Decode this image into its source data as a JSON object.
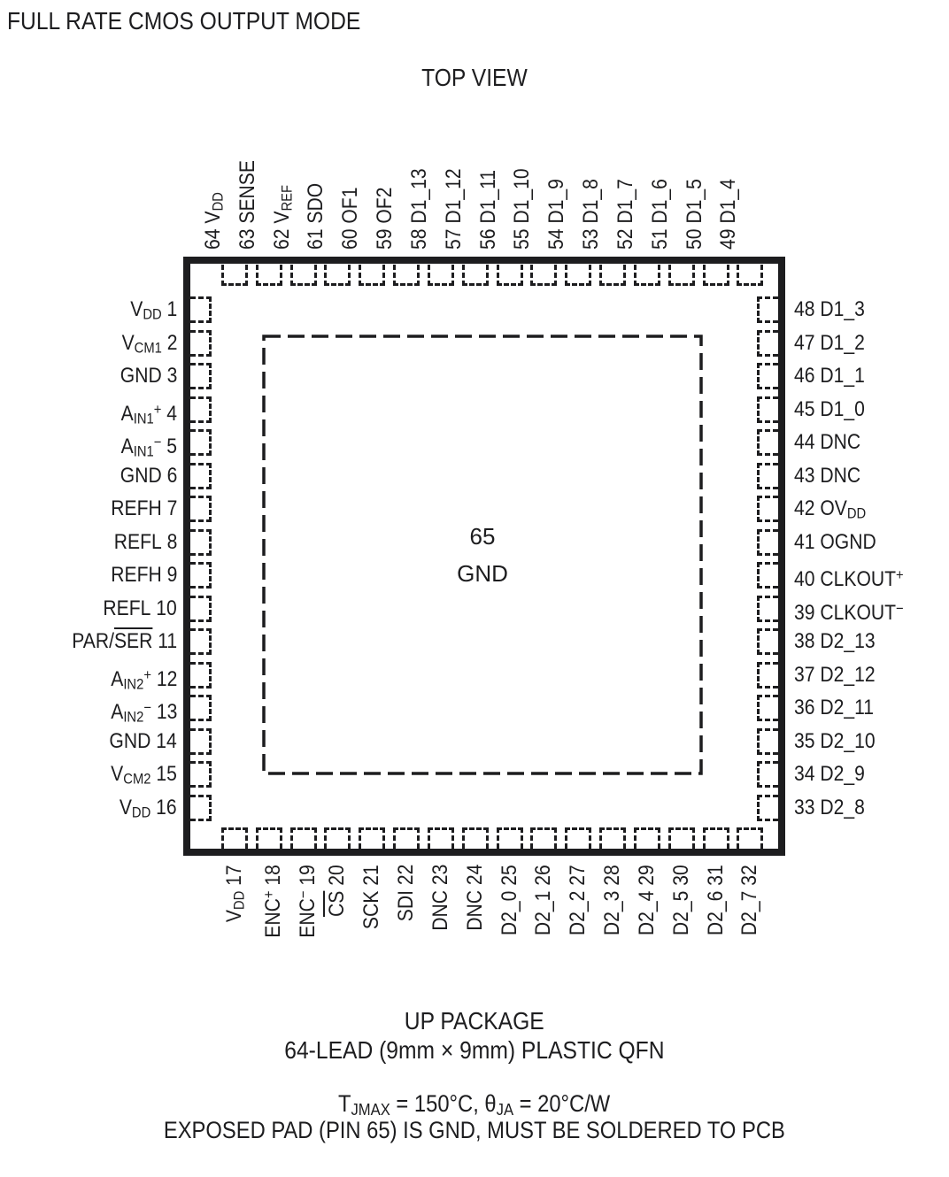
{
  "title": "FULL RATE CMOS OUTPUT MODE",
  "view_label": "TOP VIEW",
  "package": {
    "center_pad": {
      "num": "65",
      "name": "GND"
    },
    "pins": {
      "top": [
        {
          "num": "64",
          "parts": [
            [
              "V",
              ""
            ],
            [
              "DD",
              "sub"
            ]
          ]
        },
        {
          "num": "63",
          "parts": [
            [
              "SENSE",
              ""
            ]
          ]
        },
        {
          "num": "62",
          "parts": [
            [
              "V",
              ""
            ],
            [
              "REF",
              "sub"
            ]
          ]
        },
        {
          "num": "61",
          "parts": [
            [
              "SDO",
              ""
            ]
          ]
        },
        {
          "num": "60",
          "parts": [
            [
              "OF1",
              ""
            ]
          ]
        },
        {
          "num": "59",
          "parts": [
            [
              "OF2",
              ""
            ]
          ]
        },
        {
          "num": "58",
          "parts": [
            [
              "D1_13",
              ""
            ]
          ]
        },
        {
          "num": "57",
          "parts": [
            [
              "D1_12",
              ""
            ]
          ]
        },
        {
          "num": "56",
          "parts": [
            [
              "D1_11",
              ""
            ]
          ]
        },
        {
          "num": "55",
          "parts": [
            [
              "D1_10",
              ""
            ]
          ]
        },
        {
          "num": "54",
          "parts": [
            [
              "D1_9",
              ""
            ]
          ]
        },
        {
          "num": "53",
          "parts": [
            [
              "D1_8",
              ""
            ]
          ]
        },
        {
          "num": "52",
          "parts": [
            [
              "D1_7",
              ""
            ]
          ]
        },
        {
          "num": "51",
          "parts": [
            [
              "D1_6",
              ""
            ]
          ]
        },
        {
          "num": "50",
          "parts": [
            [
              "D1_5",
              ""
            ]
          ]
        },
        {
          "num": "49",
          "parts": [
            [
              "D1_4",
              ""
            ]
          ]
        }
      ],
      "left": [
        {
          "num": "1",
          "parts": [
            [
              "V",
              ""
            ],
            [
              "DD",
              "sub"
            ]
          ]
        },
        {
          "num": "2",
          "parts": [
            [
              "V",
              ""
            ],
            [
              "CM1",
              "sub"
            ]
          ]
        },
        {
          "num": "3",
          "parts": [
            [
              "GND",
              ""
            ]
          ]
        },
        {
          "num": "4",
          "parts": [
            [
              "A",
              ""
            ],
            [
              "IN1",
              "sub"
            ],
            [
              "+",
              "sup"
            ]
          ]
        },
        {
          "num": "5",
          "parts": [
            [
              "A",
              ""
            ],
            [
              "IN1",
              "sub"
            ],
            [
              "−",
              "sup"
            ]
          ]
        },
        {
          "num": "6",
          "parts": [
            [
              "GND",
              ""
            ]
          ]
        },
        {
          "num": "7",
          "parts": [
            [
              "REFH",
              ""
            ]
          ]
        },
        {
          "num": "8",
          "parts": [
            [
              "REFL",
              ""
            ]
          ]
        },
        {
          "num": "9",
          "parts": [
            [
              "REFH",
              ""
            ]
          ]
        },
        {
          "num": "10",
          "parts": [
            [
              "REFL",
              ""
            ]
          ]
        },
        {
          "num": "11",
          "parts": [
            [
              "PAR/",
              ""
            ],
            [
              "SER",
              "over"
            ]
          ]
        },
        {
          "num": "12",
          "parts": [
            [
              "A",
              ""
            ],
            [
              "IN2",
              "sub"
            ],
            [
              "+",
              "sup"
            ]
          ]
        },
        {
          "num": "13",
          "parts": [
            [
              "A",
              ""
            ],
            [
              "IN2",
              "sub"
            ],
            [
              "−",
              "sup"
            ]
          ]
        },
        {
          "num": "14",
          "parts": [
            [
              "GND",
              ""
            ]
          ]
        },
        {
          "num": "15",
          "parts": [
            [
              "V",
              ""
            ],
            [
              "CM2",
              "sub"
            ]
          ]
        },
        {
          "num": "16",
          "parts": [
            [
              "V",
              ""
            ],
            [
              "DD",
              "sub"
            ]
          ]
        }
      ],
      "right": [
        {
          "num": "48",
          "parts": [
            [
              "D1_3",
              ""
            ]
          ]
        },
        {
          "num": "47",
          "parts": [
            [
              "D1_2",
              ""
            ]
          ]
        },
        {
          "num": "46",
          "parts": [
            [
              "D1_1",
              ""
            ]
          ]
        },
        {
          "num": "45",
          "parts": [
            [
              "D1_0",
              ""
            ]
          ]
        },
        {
          "num": "44",
          "parts": [
            [
              "DNC",
              ""
            ]
          ]
        },
        {
          "num": "43",
          "parts": [
            [
              "DNC",
              ""
            ]
          ]
        },
        {
          "num": "42",
          "parts": [
            [
              "OV",
              ""
            ],
            [
              "DD",
              "sub"
            ]
          ]
        },
        {
          "num": "41",
          "parts": [
            [
              "OGND",
              ""
            ]
          ]
        },
        {
          "num": "40",
          "parts": [
            [
              "CLKOUT",
              ""
            ],
            [
              "+",
              "sup"
            ]
          ]
        },
        {
          "num": "39",
          "parts": [
            [
              "CLKOUT",
              ""
            ],
            [
              "−",
              "sup"
            ]
          ]
        },
        {
          "num": "38",
          "parts": [
            [
              "D2_13",
              ""
            ]
          ]
        },
        {
          "num": "37",
          "parts": [
            [
              "D2_12",
              ""
            ]
          ]
        },
        {
          "num": "36",
          "parts": [
            [
              "D2_11",
              ""
            ]
          ]
        },
        {
          "num": "35",
          "parts": [
            [
              "D2_10",
              ""
            ]
          ]
        },
        {
          "num": "34",
          "parts": [
            [
              "D2_9",
              ""
            ]
          ]
        },
        {
          "num": "33",
          "parts": [
            [
              "D2_8",
              ""
            ]
          ]
        }
      ],
      "bottom": [
        {
          "num": "17",
          "parts": [
            [
              "V",
              ""
            ],
            [
              "DD",
              "sub"
            ]
          ]
        },
        {
          "num": "18",
          "parts": [
            [
              "ENC",
              ""
            ],
            [
              "+",
              "sup"
            ]
          ]
        },
        {
          "num": "19",
          "parts": [
            [
              "ENC",
              ""
            ],
            [
              "−",
              "sup"
            ]
          ]
        },
        {
          "num": "20",
          "parts": [
            [
              "CS",
              "over"
            ]
          ]
        },
        {
          "num": "21",
          "parts": [
            [
              "SCK",
              ""
            ]
          ]
        },
        {
          "num": "22",
          "parts": [
            [
              "SDI",
              ""
            ]
          ]
        },
        {
          "num": "23",
          "parts": [
            [
              "DNC",
              ""
            ]
          ]
        },
        {
          "num": "24",
          "parts": [
            [
              "DNC",
              ""
            ]
          ]
        },
        {
          "num": "25",
          "parts": [
            [
              "D2_0",
              ""
            ]
          ]
        },
        {
          "num": "26",
          "parts": [
            [
              "D2_1",
              ""
            ]
          ]
        },
        {
          "num": "27",
          "parts": [
            [
              "D2_2",
              ""
            ]
          ]
        },
        {
          "num": "28",
          "parts": [
            [
              "D2_3",
              ""
            ]
          ]
        },
        {
          "num": "29",
          "parts": [
            [
              "D2_4",
              ""
            ]
          ]
        },
        {
          "num": "30",
          "parts": [
            [
              "D2_5",
              ""
            ]
          ]
        },
        {
          "num": "31",
          "parts": [
            [
              "D2_6",
              ""
            ]
          ]
        },
        {
          "num": "32",
          "parts": [
            [
              "D2_7",
              ""
            ]
          ]
        }
      ]
    }
  },
  "footer": {
    "package_name": "UP PACKAGE",
    "package_desc": "64-LEAD (9mm × 9mm) PLASTIC QFN",
    "thermal_parts": [
      [
        "T",
        ""
      ],
      [
        "JMAX",
        "sub"
      ],
      [
        " = 150°C, ",
        ""
      ],
      [
        "θ",
        ""
      ],
      [
        "JA",
        "sub"
      ],
      [
        " = 20°C/W",
        ""
      ]
    ],
    "note": "EXPOSED PAD (PIN 65) IS GND, MUST BE SOLDERED TO PCB"
  },
  "colors": {
    "ink": "#1d1d1f",
    "background": "#ffffff"
  }
}
